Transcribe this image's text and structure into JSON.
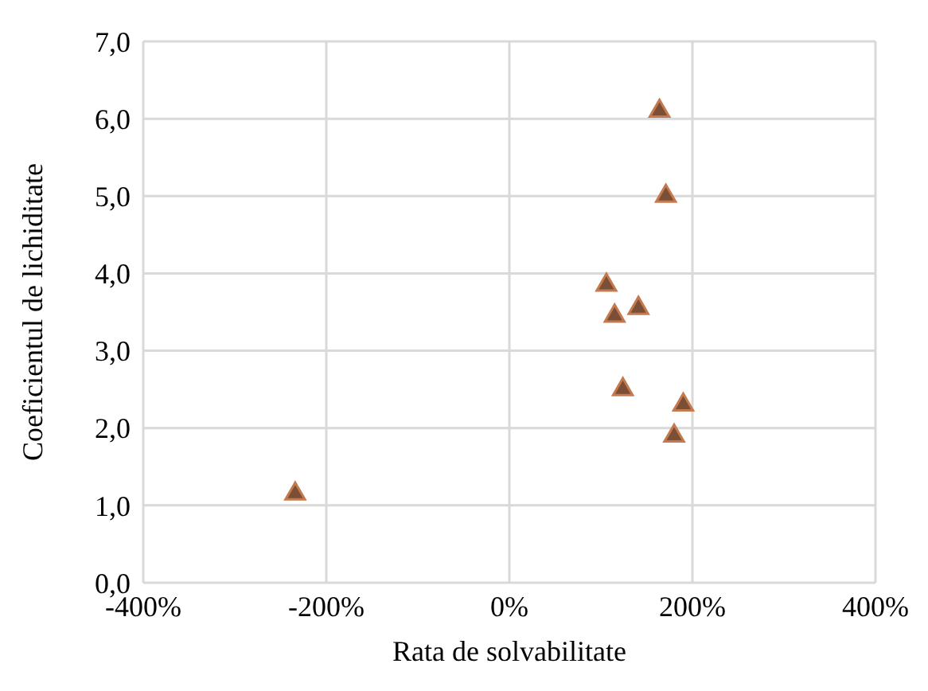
{
  "chart_data": {
    "type": "scatter",
    "xlabel": "Rata de solvabilitate",
    "ylabel": "Coeficientul de lichiditate",
    "x": [
      164,
      171,
      106,
      141,
      115,
      124,
      190,
      180,
      -234
    ],
    "values": [
      6.1,
      5.0,
      3.85,
      3.55,
      3.45,
      2.5,
      2.3,
      1.9,
      1.15
    ],
    "color": "#7b4f36",
    "marker": "triangle",
    "grid": true,
    "xlim": [
      -400,
      400
    ],
    "xticks": [
      {
        "value": -400,
        "label": "-400%"
      },
      {
        "value": -200,
        "label": "-200%"
      },
      {
        "value": 0,
        "label": "0%"
      },
      {
        "value": 200,
        "label": "200%"
      },
      {
        "value": 400,
        "label": "400%"
      }
    ],
    "ylim": [
      0,
      7
    ],
    "yticks": [
      {
        "value": 0,
        "label": "0,0"
      },
      {
        "value": 1,
        "label": "1,0"
      },
      {
        "value": 2,
        "label": "2,0"
      },
      {
        "value": 3,
        "label": "3,0"
      },
      {
        "value": 4,
        "label": "4,0"
      },
      {
        "value": 5,
        "label": "5,0"
      },
      {
        "value": 6,
        "label": "6,0"
      },
      {
        "value": 7,
        "label": "7,0"
      }
    ]
  }
}
